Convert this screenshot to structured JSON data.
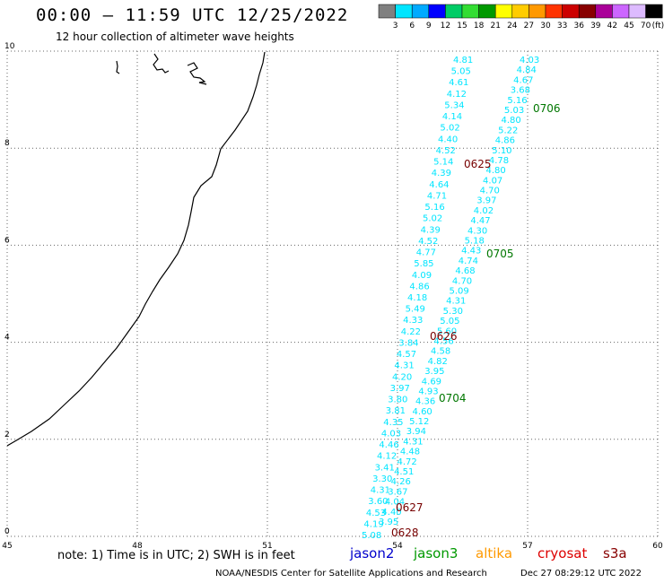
{
  "header": {
    "title": "00:00 — 11:59 UTC 12/25/2022",
    "subtitle": "12 hour collection of altimeter wave heights"
  },
  "colorbar": {
    "labels": [
      "3",
      "6",
      "9",
      "12",
      "15",
      "18",
      "21",
      "24",
      "27",
      "30",
      "33",
      "36",
      "39",
      "42",
      "45",
      "70"
    ],
    "unit": "(ft)",
    "colors": [
      "#808080",
      "#00e5ff",
      "#00aaff",
      "#0000ff",
      "#00cc66",
      "#33dd33",
      "#009900",
      "#ffff00",
      "#ffcc00",
      "#ff9900",
      "#ff3300",
      "#cc0000",
      "#880000",
      "#aa0099",
      "#cc66ff",
      "#ddbbff",
      "#000000"
    ]
  },
  "map": {
    "x_ticks": [
      "45",
      "48",
      "51",
      "54",
      "57",
      "60"
    ],
    "y_ticks": [
      "0",
      "2",
      "4",
      "6",
      "8",
      "10"
    ],
    "lon_range": [
      45,
      60
    ],
    "lat_range": [
      0,
      10
    ],
    "grid": "dotted",
    "point_color": "#00e5ff",
    "track1": {
      "values": [
        "4.81",
        "5.05",
        "4.61",
        "4.12",
        "5.34",
        "4.14",
        "5.02",
        "4.40",
        "4.52",
        "5.14",
        "4.39",
        "4.64",
        "4.71",
        "5.16",
        "5.02",
        "4.39",
        "4.52",
        "4.77",
        "5.85",
        "4.09",
        "4.86",
        "4.18",
        "5.49",
        "4.33",
        "4.22",
        "3.84",
        "4.57",
        "4.31",
        "4.20",
        "3.97",
        "3.80",
        "3.81",
        "4.35",
        "4.03",
        "4.46",
        "4.12",
        "3.41",
        "3.30",
        "4.31",
        "3.60",
        "4.53",
        "4.19",
        "5.08"
      ]
    },
    "track2": {
      "values": [
        "4.03",
        "4.84",
        "4.67",
        "3.68",
        "5.16",
        "5.03",
        "4.80",
        "5.22",
        "4.86",
        "5.10",
        "4.78",
        "4.80",
        "4.07",
        "4.70",
        "3.97",
        "4.02",
        "4.47",
        "4.30",
        "5.18",
        "4.43",
        "4.74",
        "4.68",
        "4.70",
        "5.09",
        "4.31",
        "5.30",
        "5.05",
        "5.60",
        "4.56",
        "4.58",
        "4.82",
        "3.95",
        "4.69",
        "4.93",
        "4.36",
        "4.60",
        "5.12",
        "3.94",
        "4.31",
        "4.48",
        "4.72",
        "4.51",
        "4.26",
        "3.67",
        "4.04",
        "4.40",
        "3.95"
      ]
    },
    "time_labels": [
      {
        "text": "0706",
        "color": "#007700"
      },
      {
        "text": "0625",
        "color": "#770000"
      },
      {
        "text": "0705",
        "color": "#007700"
      },
      {
        "text": "0626",
        "color": "#770000"
      },
      {
        "text": "0704",
        "color": "#007700"
      },
      {
        "text": "0627",
        "color": "#770000"
      },
      {
        "text": "0628",
        "color": "#770000"
      }
    ]
  },
  "footer": {
    "note": "note:  1) Time is in UTC;  2) SWH is in feet",
    "satellites": [
      {
        "name": "jason2",
        "color": "#0000cc"
      },
      {
        "name": "jason3",
        "color": "#009900"
      },
      {
        "name": "altika",
        "color": "#ff9900"
      },
      {
        "name": "cryosat",
        "color": "#dd0000"
      },
      {
        "name": "s3a",
        "color": "#880000"
      }
    ],
    "credit": "NOAA/NESDIS Center for Satellite Applications and Research",
    "generated": "Dec 27 08:29:12 UTC 2022"
  }
}
